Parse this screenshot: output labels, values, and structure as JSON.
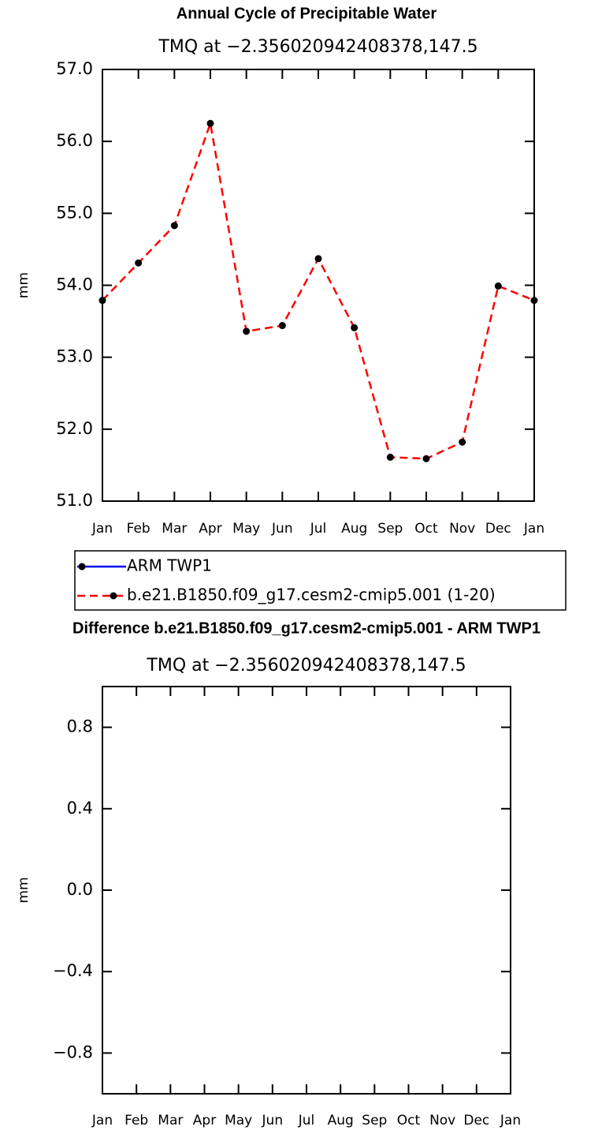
{
  "chart_data": [
    {
      "type": "line",
      "title": "Annual Cycle of Precipitable Water",
      "subtitle": "TMQ at −2.356020942408378,147.5",
      "y_label": "mm",
      "categories": [
        "Jan",
        "Feb",
        "Mar",
        "Apr",
        "May",
        "Jun",
        "Jul",
        "Aug",
        "Sep",
        "Oct",
        "Nov",
        "Dec",
        "Jan"
      ],
      "ylim": [
        51,
        57
      ],
      "yticks": [
        {
          "value": 51,
          "label": "51.0"
        },
        {
          "value": 52,
          "label": "52.0"
        },
        {
          "value": 53,
          "label": "53.0"
        },
        {
          "value": 54,
          "label": "54.0"
        },
        {
          "value": 55,
          "label": "55.0"
        },
        {
          "value": 56,
          "label": "56.0"
        },
        {
          "value": 57,
          "label": "57.0"
        }
      ],
      "series": [
        {
          "name": "ARM TWP1",
          "color": "#0000ff",
          "line_style": "solid",
          "values": [
            null,
            null,
            null,
            null,
            null,
            null,
            null,
            null,
            null,
            null,
            null,
            null,
            null
          ]
        },
        {
          "name": "b.e21.B1850.f09_g17.cesm2-cmip5.001 (1-20)",
          "color": "#ff0000",
          "line_style": "dashed",
          "values": [
            53.79,
            54.31,
            54.83,
            56.25,
            53.36,
            53.44,
            54.37,
            53.41,
            51.61,
            51.59,
            51.82,
            53.99,
            53.79
          ]
        }
      ],
      "marker_color": "#000000"
    },
    {
      "type": "line",
      "title": "Difference b.e21.B1850.f09_g17.cesm2-cmip5.001 - ARM TWP1",
      "subtitle": "TMQ at −2.356020942408378,147.5",
      "y_label": "mm",
      "categories": [
        "Jan",
        "Feb",
        "Mar",
        "Apr",
        "May",
        "Jun",
        "Jul",
        "Aug",
        "Sep",
        "Oct",
        "Nov",
        "Dec",
        "Jan"
      ],
      "ylim": [
        -1,
        1
      ],
      "yticks": [
        {
          "value": -0.8,
          "label": "−0.8"
        },
        {
          "value": -0.4,
          "label": "−0.4"
        },
        {
          "value": 0,
          "label": "0.0"
        },
        0.4,
        0.8
      ],
      "series": []
    }
  ]
}
